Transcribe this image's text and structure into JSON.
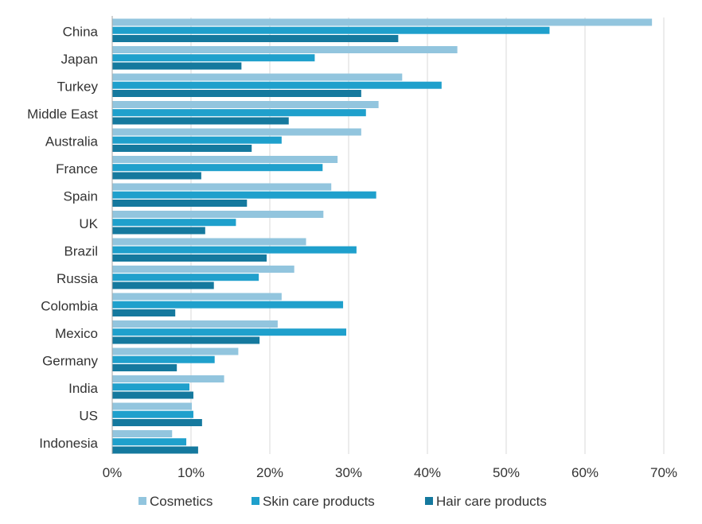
{
  "chart_data": {
    "type": "bar",
    "orientation": "horizontal",
    "categories": [
      "China",
      "Japan",
      "Turkey",
      "Middle East",
      "Australia",
      "France",
      "Spain",
      "UK",
      "Brazil",
      "Russia",
      "Colombia",
      "Mexico",
      "Germany",
      "India",
      "US",
      "Indonesia"
    ],
    "series": [
      {
        "name": "Cosmetics",
        "color": "#92c5de",
        "values": [
          68.5,
          43.8,
          36.8,
          33.8,
          31.6,
          28.6,
          27.8,
          26.8,
          24.6,
          23.1,
          21.5,
          21.0,
          16.0,
          14.2,
          10.1,
          7.6
        ]
      },
      {
        "name": "Skin care products",
        "color": "#1fa0cc",
        "values": [
          55.5,
          25.7,
          41.8,
          32.2,
          21.5,
          26.7,
          33.5,
          15.7,
          31.0,
          18.6,
          29.3,
          29.7,
          13.0,
          9.8,
          10.3,
          9.4
        ]
      },
      {
        "name": "Hair care products",
        "color": "#15799e",
        "values": [
          36.3,
          16.4,
          31.6,
          22.4,
          17.7,
          11.3,
          17.1,
          11.8,
          19.6,
          12.9,
          8.0,
          18.7,
          8.2,
          10.3,
          11.4,
          10.9
        ]
      }
    ],
    "xticks": [
      "0%",
      "10%",
      "20%",
      "30%",
      "40%",
      "50%",
      "60%",
      "70%"
    ],
    "xlim": [
      0,
      70
    ],
    "grid": true,
    "legend": "bottom",
    "title": "",
    "xlabel": "",
    "ylabel": ""
  }
}
